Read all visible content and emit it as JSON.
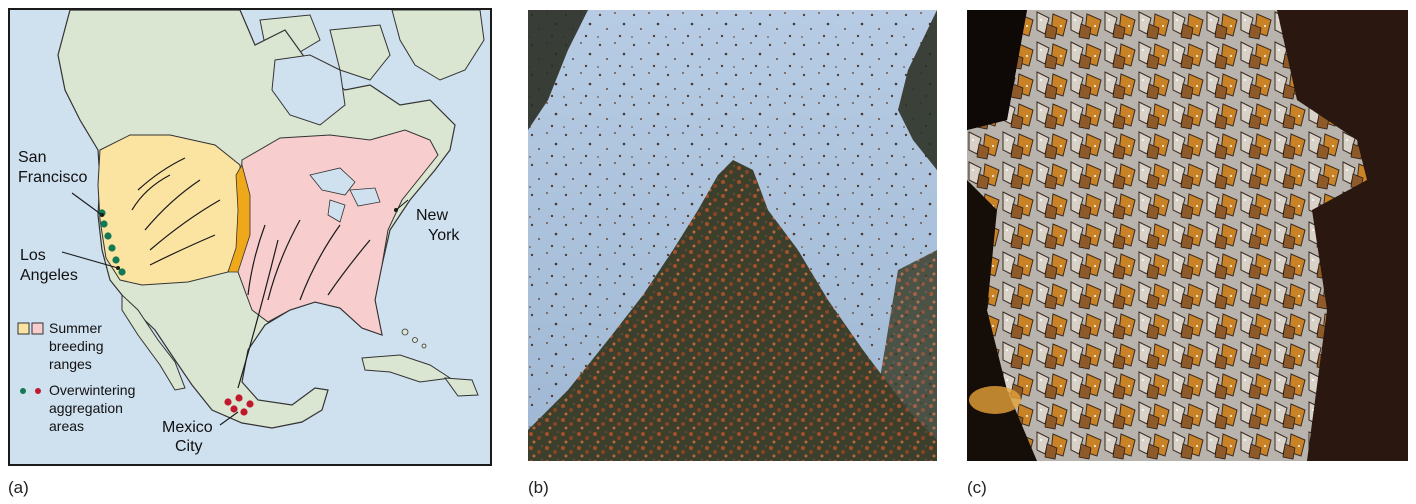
{
  "panels": {
    "a": {
      "label": "(a)"
    },
    "b": {
      "label": "(b)"
    },
    "c": {
      "label": "(c)"
    }
  },
  "map": {
    "cities": {
      "san_francisco": [
        "San",
        "Francisco"
      ],
      "los_angeles": [
        "Los",
        "Angeles"
      ],
      "new_york": [
        "New",
        "York"
      ],
      "mexico_city": [
        "Mexico",
        "City"
      ]
    },
    "legend": {
      "summer": [
        "Summer",
        "breeding",
        "ranges"
      ],
      "overwinter": [
        "Overwintering",
        "aggregation",
        "areas"
      ]
    }
  },
  "colors": {
    "ocean": "#cfe0ef",
    "land": "#dbe6d2",
    "western_range": "#fbe3a2",
    "eastern_range": "#f7cdcd",
    "overlap": "#eea81a",
    "western_dot": "#117a55",
    "eastern_dot": "#c0192e"
  }
}
